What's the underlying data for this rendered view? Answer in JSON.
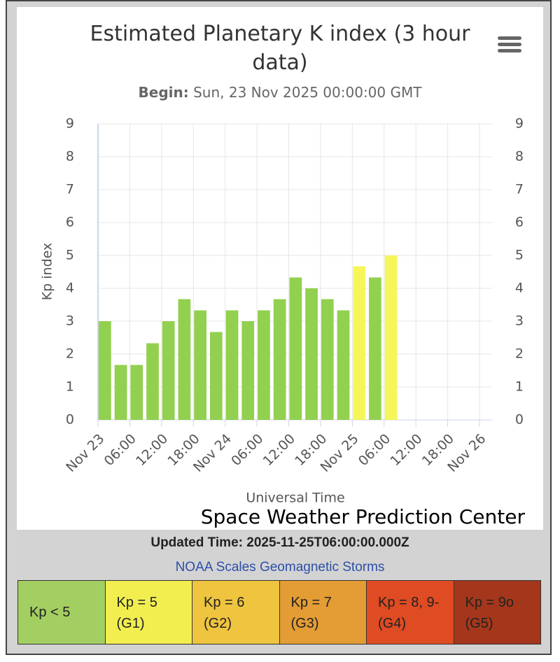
{
  "chart_data": {
    "type": "bar",
    "title": "Estimated Planetary K index (3 hour data)",
    "subtitle_label": "Begin:",
    "subtitle_value": "Sun, 23 Nov 2025 00:00:00 GMT",
    "y_label": "Kp index",
    "x_label": "Universal Time",
    "credit": "Space Weather Prediction Center",
    "series": [
      {
        "name": "Kp",
        "x": [
          "2025-11-23T00:00Z",
          "2025-11-23T03:00Z",
          "2025-11-23T06:00Z",
          "2025-11-23T09:00Z",
          "2025-11-23T12:00Z",
          "2025-11-23T15:00Z",
          "2025-11-23T18:00Z",
          "2025-11-23T21:00Z",
          "2025-11-24T00:00Z",
          "2025-11-24T03:00Z",
          "2025-11-24T06:00Z",
          "2025-11-24T09:00Z",
          "2025-11-24T12:00Z",
          "2025-11-24T15:00Z",
          "2025-11-24T18:00Z",
          "2025-11-24T21:00Z",
          "2025-11-25T00:00Z",
          "2025-11-25T03:00Z",
          "2025-11-25T06:00Z"
        ],
        "values": [
          3,
          1.67,
          1.67,
          2.33,
          3,
          3.67,
          3.33,
          2.67,
          3.33,
          3,
          3.33,
          3.67,
          4.33,
          4,
          3.67,
          3.33,
          4.67,
          4.33,
          5
        ],
        "colors": [
          "#92d050",
          "#92d050",
          "#92d050",
          "#92d050",
          "#92d050",
          "#92d050",
          "#92d050",
          "#92d050",
          "#92d050",
          "#92d050",
          "#92d050",
          "#92d050",
          "#92d050",
          "#92d050",
          "#92d050",
          "#92d050",
          "#f6f65a",
          "#92d050",
          "#f6f65a"
        ]
      }
    ],
    "xlim": [
      "2025-11-23T00:00Z",
      "2025-11-26T00:00Z"
    ],
    "xticks": [
      {
        "value": "2025-11-23T00:00Z",
        "label": "Nov 23"
      },
      {
        "value": "2025-11-23T06:00Z",
        "label": "06:00"
      },
      {
        "value": "2025-11-23T12:00Z",
        "label": "12:00"
      },
      {
        "value": "2025-11-23T18:00Z",
        "label": "18:00"
      },
      {
        "value": "2025-11-24T00:00Z",
        "label": "Nov 24"
      },
      {
        "value": "2025-11-24T06:00Z",
        "label": "06:00"
      },
      {
        "value": "2025-11-24T12:00Z",
        "label": "12:00"
      },
      {
        "value": "2025-11-24T18:00Z",
        "label": "18:00"
      },
      {
        "value": "2025-11-25T00:00Z",
        "label": "Nov 25"
      },
      {
        "value": "2025-11-25T06:00Z",
        "label": "06:00"
      },
      {
        "value": "2025-11-25T12:00Z",
        "label": "12:00"
      },
      {
        "value": "2025-11-25T18:00Z",
        "label": "18:00"
      },
      {
        "value": "2025-11-26T00:00Z",
        "label": "Nov 26"
      }
    ],
    "ylim": [
      0,
      9
    ],
    "yticks": [
      0,
      1,
      2,
      3,
      4,
      5,
      6,
      7,
      8,
      9
    ],
    "y2lim": [
      0,
      9
    ],
    "y2ticks": [
      0,
      1,
      2,
      3,
      4,
      5,
      6,
      7,
      8,
      9
    ],
    "grid": true,
    "updated": "Updated Time: 2025-11-25T06:00:00.000Z",
    "scales_link": "NOAA Scales Geomagnetic Storms",
    "scale_legend": [
      {
        "label": "Kp < 5",
        "color": "#a3cf62"
      },
      {
        "label": "Kp = 5 (G1)",
        "color": "#f2ee50"
      },
      {
        "label": "Kp = 6 (G2)",
        "color": "#efc43e"
      },
      {
        "label": "Kp = 7 (G3)",
        "color": "#e49c34"
      },
      {
        "label": "Kp = 8, 9- (G4)",
        "color": "#df4b22"
      },
      {
        "label": "Kp = 9o (G5)",
        "color": "#a4371b"
      }
    ]
  }
}
